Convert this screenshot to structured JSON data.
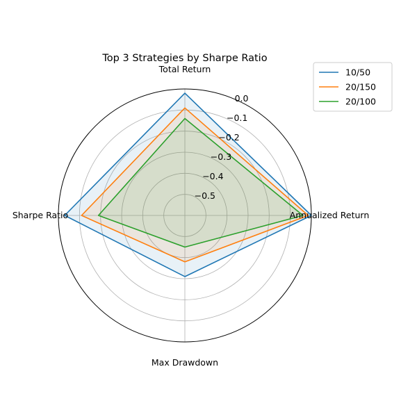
{
  "chart_data": {
    "type": "radar",
    "title": "Top 3 Strategies by Sharpe Ratio",
    "axes": [
      "Total Return",
      "Annualized Return",
      "Max Drawdown",
      "Sharpe Ratio"
    ],
    "rlim": [
      -0.6,
      0.0
    ],
    "rticks": [
      0.0,
      -0.1,
      -0.2,
      -0.3,
      -0.4,
      -0.5
    ],
    "rtick_labels": [
      "0.0",
      "−0.1",
      "−0.2",
      "−0.3",
      "−0.4",
      "−0.5"
    ],
    "grid": true,
    "legend_position": "top-right",
    "series": [
      {
        "name": "10/50",
        "color": "#1f77b4",
        "values": [
          -0.02,
          0.0,
          -0.31,
          -0.03
        ]
      },
      {
        "name": "20/150",
        "color": "#ff7f0e",
        "values": [
          -0.09,
          -0.015,
          -0.38,
          -0.11
        ]
      },
      {
        "name": "20/100",
        "color": "#2ca02c",
        "values": [
          -0.14,
          -0.04,
          -0.45,
          -0.19
        ]
      }
    ]
  }
}
